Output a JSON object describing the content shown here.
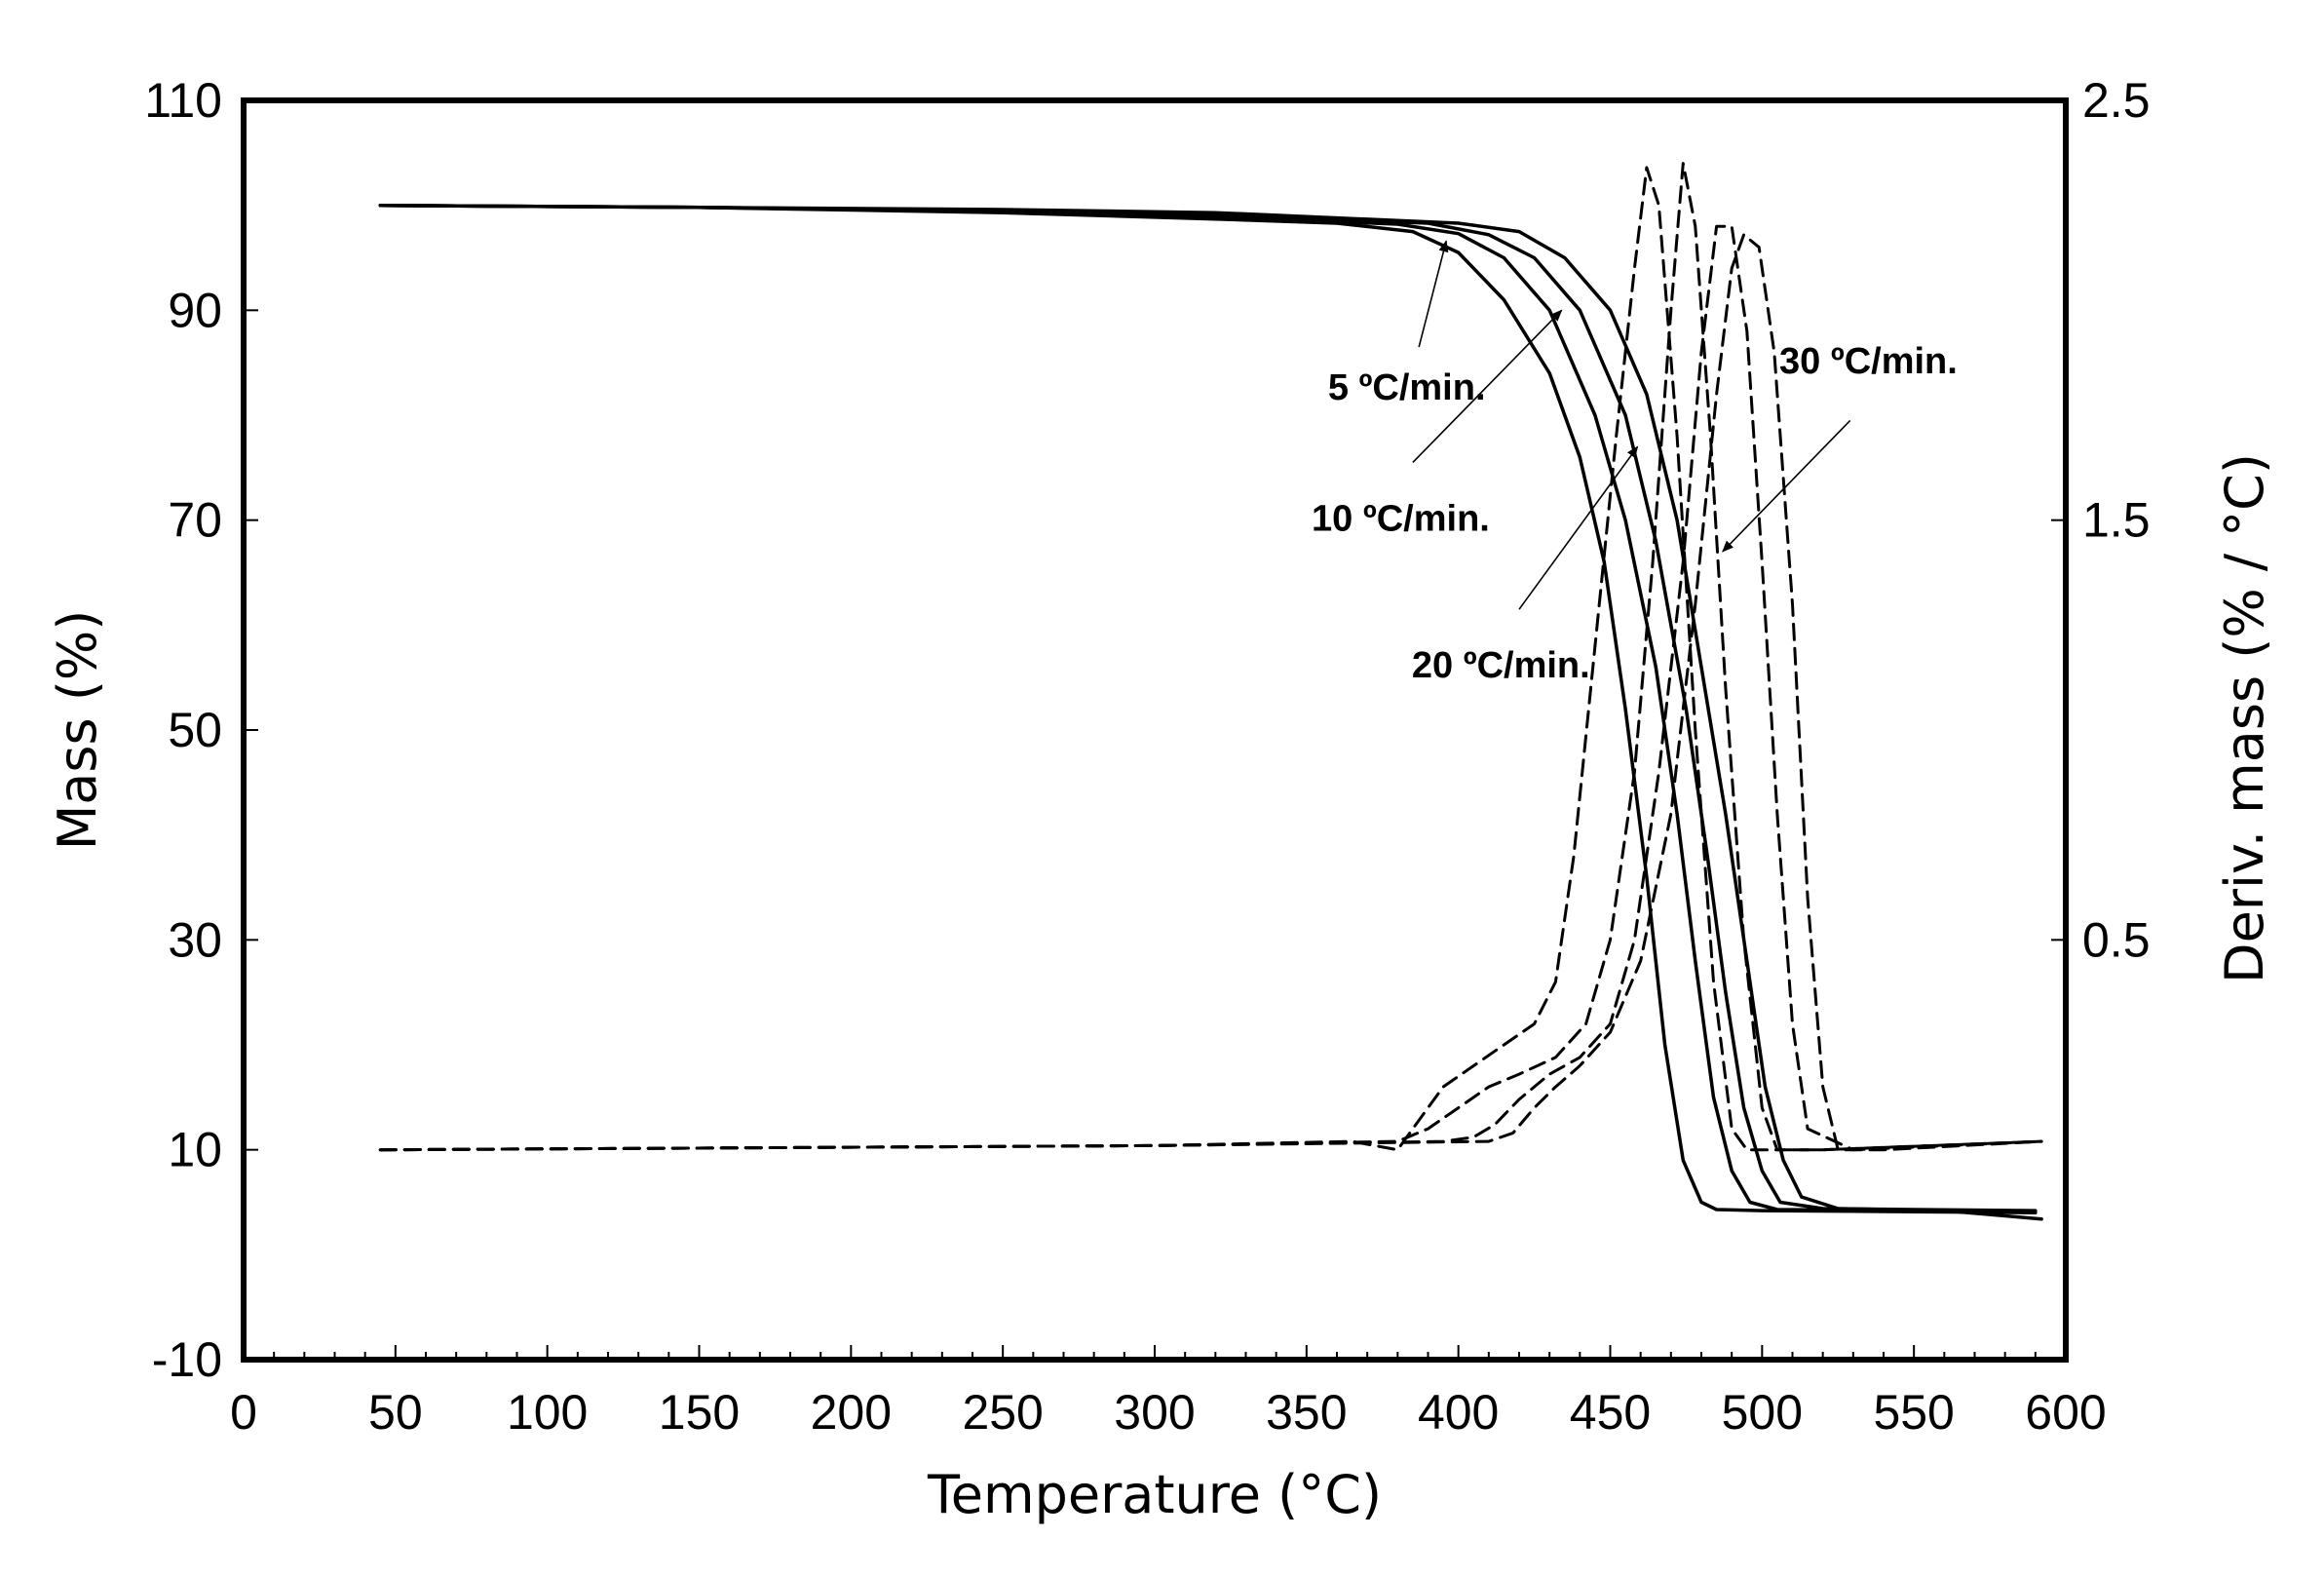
{
  "chart_data": {
    "type": "line",
    "title": "",
    "xlabel": "Temperature (°C)",
    "ylabel": "Mass (%)",
    "y2label": "Deriv. mass (% / °C)",
    "xlim": [
      0,
      600
    ],
    "ylim": [
      -10,
      110
    ],
    "y2lim": [
      -0.5,
      2.5
    ],
    "xticks": [
      0,
      50,
      100,
      150,
      200,
      250,
      300,
      350,
      400,
      450,
      500,
      550,
      600
    ],
    "yticks": [
      -10,
      10,
      30,
      50,
      70,
      90,
      110
    ],
    "y2ticks": [
      0.5,
      1.5,
      2.5
    ],
    "grid": false,
    "series": [
      {
        "name": "Mass 5 °C/min.",
        "axis": "left",
        "style": "solid",
        "x": [
          45,
          150,
          250,
          320,
          360,
          385,
          400,
          415,
          430,
          440,
          448,
          455,
          462,
          468,
          474,
          480,
          485,
          500,
          550,
          590
        ],
        "y": [
          100,
          99.8,
          99.3,
          98.7,
          98.3,
          97.5,
          95.5,
          91,
          84,
          76,
          66,
          52,
          36,
          20,
          9,
          5,
          4.3,
          4.2,
          4.1,
          4.0
        ]
      },
      {
        "name": "Mass 10 °C/min.",
        "axis": "left",
        "style": "solid",
        "x": [
          45,
          150,
          250,
          320,
          380,
          400,
          415,
          430,
          445,
          455,
          465,
          472,
          478,
          484,
          490,
          496,
          505,
          550,
          590
        ],
        "y": [
          100,
          99.8,
          99.4,
          98.9,
          98.2,
          97.3,
          95,
          90,
          80,
          70,
          56,
          42,
          28,
          15,
          8,
          5,
          4.3,
          4.2,
          4.1
        ]
      },
      {
        "name": "Mass 20 °C/min.",
        "axis": "left",
        "style": "solid",
        "x": [
          45,
          150,
          250,
          320,
          390,
          410,
          425,
          440,
          455,
          465,
          475,
          482,
          488,
          494,
          500,
          506,
          520,
          550,
          590
        ],
        "y": [
          100,
          99.8,
          99.5,
          99.1,
          98.3,
          97.2,
          95,
          90,
          80,
          68,
          52,
          38,
          25,
          14,
          8,
          5,
          4.4,
          4.3,
          4.2
        ]
      },
      {
        "name": "Mass 30 °C/min.",
        "axis": "left",
        "style": "solid",
        "x": [
          45,
          150,
          250,
          320,
          400,
          420,
          435,
          450,
          462,
          472,
          480,
          488,
          495,
          501,
          507,
          513,
          525,
          560,
          592
        ],
        "y": [
          100,
          99.8,
          99.6,
          99.3,
          98.3,
          97.5,
          95,
          90,
          82,
          70,
          56,
          42,
          28,
          16,
          9,
          5.5,
          4.4,
          4.2,
          3.4
        ]
      },
      {
        "name": "Deriv. mass 5 °C/min.",
        "axis": "right",
        "style": "dashed",
        "x": [
          45,
          300,
          365,
          380,
          385,
          395,
          405,
          415,
          425,
          432,
          438,
          445,
          452,
          458,
          462,
          466,
          472,
          478,
          484,
          490,
          495,
          520,
          592
        ],
        "y": [
          0,
          0.01,
          0.02,
          0,
          0.05,
          0.15,
          0.2,
          0.25,
          0.3,
          0.4,
          0.7,
          1.2,
          1.7,
          2.1,
          2.34,
          2.25,
          1.7,
          1.0,
          0.4,
          0.05,
          0,
          0,
          0.02
        ]
      },
      {
        "name": "Deriv. mass 10 °C/min.",
        "axis": "right",
        "style": "dashed",
        "x": [
          45,
          300,
          380,
          390,
          400,
          410,
          420,
          432,
          442,
          450,
          458,
          464,
          470,
          474,
          478,
          483,
          488,
          494,
          500,
          505,
          520,
          592
        ],
        "y": [
          0,
          0.01,
          0.02,
          0.05,
          0.1,
          0.15,
          0.18,
          0.22,
          0.3,
          0.5,
          0.9,
          1.4,
          2.0,
          2.35,
          2.2,
          1.7,
          1.1,
          0.5,
          0.1,
          0,
          0,
          0.02
        ]
      },
      {
        "name": "Deriv. mass 20 °C/min.",
        "axis": "right",
        "style": "dashed",
        "x": [
          45,
          300,
          395,
          405,
          412,
          420,
          430,
          440,
          450,
          458,
          466,
          474,
          480,
          485,
          490,
          495,
          500,
          505,
          510,
          515,
          530,
          592
        ],
        "y": [
          0,
          0.01,
          0.02,
          0.03,
          0.06,
          0.12,
          0.18,
          0.22,
          0.3,
          0.5,
          0.9,
          1.4,
          1.9,
          2.2,
          2.2,
          1.95,
          1.4,
          0.8,
          0.3,
          0.05,
          0,
          0.02
        ]
      },
      {
        "name": "Deriv. mass 30 °C/min.",
        "axis": "right",
        "style": "dashed",
        "x": [
          45,
          300,
          410,
          418,
          425,
          432,
          440,
          450,
          460,
          470,
          478,
          485,
          490,
          494,
          499,
          504,
          510,
          515,
          520,
          525,
          540,
          592
        ],
        "y": [
          0,
          0.01,
          0.02,
          0.04,
          0.1,
          0.15,
          0.2,
          0.28,
          0.45,
          0.8,
          1.3,
          1.8,
          2.1,
          2.18,
          2.15,
          1.9,
          1.3,
          0.6,
          0.15,
          0,
          0,
          0.02
        ]
      }
    ],
    "annotations": [
      {
        "text": "5 ºC/min.",
        "x": 383,
        "y": 81.5,
        "arrow_from": [
          387,
          86.5
        ],
        "arrow_to": [
          396,
          96.6
        ]
      },
      {
        "text": "10 ºC/min.",
        "x": 381,
        "y": 69,
        "arrow_from": [
          385,
          75.5
        ],
        "arrow_to": [
          434,
          90
        ]
      },
      {
        "text": "20 ºC/min.",
        "x": 414,
        "y": 55,
        "arrow_from": [
          420,
          61.5
        ],
        "arrow_to": [
          459,
          77
        ]
      },
      {
        "text": "30 ºC/min.",
        "x": 535,
        "y": 84,
        "arrow_from": [
          529,
          79.5
        ],
        "arrow_to": [
          487,
          67
        ]
      }
    ]
  }
}
